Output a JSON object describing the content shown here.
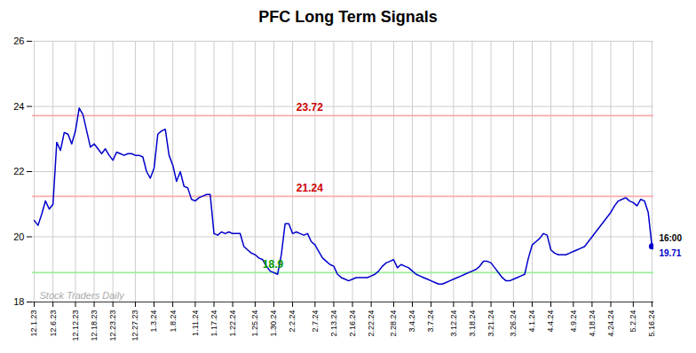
{
  "chart_data": {
    "type": "line",
    "title": "PFC Long Term Signals",
    "categories": [
      "12.1.23",
      null,
      null,
      null,
      null,
      "12.6.23",
      null,
      null,
      null,
      null,
      null,
      "12.12.23",
      null,
      null,
      null,
      null,
      "12.18.23",
      null,
      null,
      null,
      null,
      "12.23.23",
      null,
      null,
      null,
      null,
      null,
      "12.27.23",
      null,
      null,
      null,
      null,
      "1.3.24",
      null,
      null,
      null,
      null,
      "1.8.24",
      null,
      null,
      null,
      null,
      null,
      "1.11.24",
      null,
      null,
      null,
      null,
      "1.17.24",
      null,
      null,
      null,
      null,
      "1.22.24",
      null,
      null,
      null,
      null,
      null,
      "1.25.24",
      null,
      null,
      null,
      null,
      "1.30.24",
      null,
      null,
      null,
      null,
      "2.2.24",
      null,
      null,
      null,
      null,
      null,
      "2.7.24",
      null,
      null,
      null,
      null,
      "2.13.24",
      null,
      null,
      null,
      null,
      "2.16.24",
      null,
      null,
      null,
      null,
      "2.22.24",
      null,
      null,
      null,
      null,
      null,
      "2.28.24",
      null,
      null,
      null,
      null,
      "3.4.24",
      null,
      null,
      null,
      null,
      "3.7.24",
      null,
      null,
      null,
      null,
      null,
      "3.12.24",
      null,
      null,
      null,
      null,
      "3.18.24",
      null,
      null,
      null,
      null,
      "3.21.24",
      null,
      null,
      null,
      null,
      null,
      "3.26.24",
      null,
      null,
      null,
      null,
      "4.1.24",
      null,
      null,
      null,
      null,
      "4.4.24",
      null,
      null,
      null,
      null,
      null,
      "4.9.24",
      null,
      null,
      null,
      null,
      "4.18.24",
      null,
      null,
      null,
      null,
      "4.24.24",
      null,
      null,
      null,
      null,
      null,
      "5.2.24",
      null,
      null,
      null,
      null,
      "5.16.24"
    ],
    "values": [
      20.5,
      20.35,
      20.7,
      21.1,
      20.85,
      21.0,
      22.9,
      22.65,
      23.2,
      23.15,
      22.85,
      23.25,
      23.95,
      23.75,
      23.25,
      22.75,
      22.85,
      22.7,
      22.55,
      22.7,
      22.5,
      22.35,
      22.6,
      22.55,
      22.5,
      22.55,
      22.55,
      22.5,
      22.5,
      22.45,
      22.0,
      21.8,
      22.1,
      23.15,
      23.25,
      23.3,
      22.5,
      22.2,
      21.7,
      22.0,
      21.55,
      21.5,
      21.15,
      21.1,
      21.2,
      21.25,
      21.3,
      21.3,
      20.1,
      20.05,
      20.15,
      20.1,
      20.15,
      20.1,
      20.1,
      20.1,
      19.7,
      19.6,
      19.5,
      19.45,
      19.35,
      19.3,
      19.1,
      18.95,
      18.9,
      18.85,
      19.45,
      20.4,
      20.4,
      20.1,
      20.15,
      20.1,
      20.05,
      20.1,
      19.85,
      19.75,
      19.55,
      19.35,
      19.25,
      19.15,
      19.1,
      18.85,
      18.75,
      18.7,
      18.65,
      18.7,
      18.75,
      18.75,
      18.75,
      18.75,
      18.8,
      18.85,
      18.95,
      19.1,
      19.2,
      19.25,
      19.3,
      19.05,
      19.15,
      19.1,
      19.05,
      18.95,
      18.85,
      18.8,
      18.75,
      18.7,
      18.65,
      18.6,
      18.55,
      18.55,
      18.6,
      18.65,
      18.7,
      18.75,
      18.8,
      18.85,
      18.9,
      18.95,
      19.0,
      19.1,
      19.25,
      19.25,
      19.2,
      19.05,
      18.9,
      18.75,
      18.65,
      18.65,
      18.7,
      18.75,
      18.8,
      18.85,
      19.35,
      19.75,
      19.85,
      19.95,
      20.1,
      20.05,
      19.6,
      19.5,
      19.45,
      19.45,
      19.45,
      19.5,
      19.55,
      19.6,
      19.65,
      19.7,
      19.85,
      20.0,
      20.15,
      20.3,
      20.45,
      20.6,
      20.75,
      20.95,
      21.1,
      21.15,
      21.2,
      21.1,
      21.05,
      20.95,
      21.15,
      21.1,
      20.75,
      19.71
    ],
    "color": "#0000cc",
    "ylim": [
      18,
      26
    ],
    "yticks": [
      18,
      20,
      22,
      24,
      26
    ],
    "grid": true,
    "hlines": [
      {
        "value": 23.72,
        "label": "23.72",
        "color": "#ffaaaa",
        "label_color": "#cc0000"
      },
      {
        "value": 21.24,
        "label": "21.24",
        "color": "#ffaaaa",
        "label_color": "#cc0000"
      },
      {
        "value": 18.9,
        "label": "18.9",
        "color": "#99ee99",
        "label_color": "#009900"
      }
    ],
    "watermark": {
      "text": "Stock Traders Daily",
      "color": "#aaaaaa"
    },
    "end_labels": [
      {
        "text": "16:00",
        "color": "#000000"
      },
      {
        "text": "19.71",
        "color": "#0000cc"
      }
    ]
  }
}
